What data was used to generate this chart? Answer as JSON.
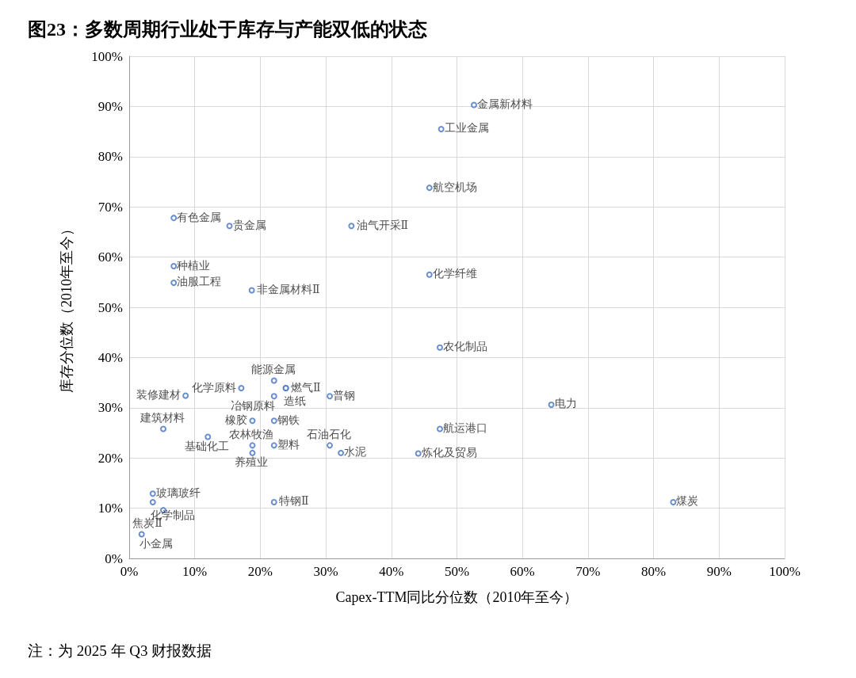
{
  "chart_data": {
    "type": "scatter",
    "title": "图23：多数周期行业处于库存与产能双低的状态",
    "xlabel": "Capex-TTM同比分位数（2010年至今）",
    "ylabel": "库存分位数（2010年至今）",
    "annotations": [
      "注：为 2025 年 Q3 财报数据"
    ],
    "xlim": [
      0,
      100
    ],
    "ylim": [
      0,
      100
    ],
    "xticks": [
      {
        "value": 0,
        "label": "0%"
      },
      {
        "value": 10,
        "label": "10%"
      },
      {
        "value": 20,
        "label": "20%"
      },
      {
        "value": 30,
        "label": "30%"
      },
      {
        "value": 40,
        "label": "40%"
      },
      {
        "value": 50,
        "label": "50%"
      },
      {
        "value": 60,
        "label": "60%"
      },
      {
        "value": 70,
        "label": "70%"
      },
      {
        "value": 80,
        "label": "80%"
      },
      {
        "value": 90,
        "label": "90%"
      },
      {
        "value": 100,
        "label": "100%"
      }
    ],
    "yticks": [
      {
        "value": 0,
        "label": "0%"
      },
      {
        "value": 10,
        "label": "10%"
      },
      {
        "value": 20,
        "label": "20%"
      },
      {
        "value": 30,
        "label": "30%"
      },
      {
        "value": 40,
        "label": "40%"
      },
      {
        "value": 50,
        "label": "50%"
      },
      {
        "value": 60,
        "label": "60%"
      },
      {
        "value": 70,
        "label": "70%"
      },
      {
        "value": 80,
        "label": "80%"
      },
      {
        "value": 90,
        "label": "90%"
      },
      {
        "value": 100,
        "label": "100%"
      }
    ],
    "grid": true,
    "legend": false,
    "marker": "circle",
    "series": [
      {
        "name": "金属新材料",
        "color": "#4472c4",
        "x": [
          52.6
        ],
        "values": [
          90.3
        ]
      },
      {
        "name": "工业金属",
        "color": "#4472c4",
        "x": [
          47.6
        ],
        "values": [
          85.5
        ]
      },
      {
        "name": "航空机场",
        "color": "#4472c4",
        "x": [
          45.8
        ],
        "values": [
          73.8
        ]
      },
      {
        "name": "有色金属",
        "color": "#4472c4",
        "x": [
          6.8
        ],
        "values": [
          67.8
        ]
      },
      {
        "name": "贵金属",
        "color": "#4472c4",
        "x": [
          15.3
        ],
        "values": [
          66.2
        ]
      },
      {
        "name": "油气开采Ⅱ",
        "color": "#4472c4",
        "x": [
          33.9
        ],
        "values": [
          66.2
        ]
      },
      {
        "name": "种植业",
        "color": "#4472c4",
        "x": [
          6.8
        ],
        "values": [
          58.2
        ]
      },
      {
        "name": "油服工程",
        "color": "#4472c4",
        "x": [
          6.8
        ],
        "values": [
          54.9
        ]
      },
      {
        "name": "非金属材料Ⅱ",
        "color": "#4472c4",
        "x": [
          18.7
        ],
        "values": [
          53.4
        ]
      },
      {
        "name": "化学纤维",
        "color": "#4472c4",
        "x": [
          45.8
        ],
        "values": [
          56.5
        ]
      },
      {
        "name": "农化制品",
        "color": "#4472c4",
        "x": [
          47.4
        ],
        "values": [
          42.0
        ]
      },
      {
        "name": "电力",
        "color": "#4472c4",
        "x": [
          64.4
        ],
        "values": [
          30.6
        ]
      },
      {
        "name": "航运港口",
        "color": "#4472c4",
        "x": [
          47.4
        ],
        "values": [
          25.8
        ]
      },
      {
        "name": "炼化及贸易",
        "color": "#4472c4",
        "x": [
          44.1
        ],
        "values": [
          20.9
        ]
      },
      {
        "name": "煤炭",
        "color": "#4472c4",
        "x": [
          83.0
        ],
        "values": [
          11.2
        ]
      },
      {
        "name": "能源金属",
        "color": "#4472c4",
        "x": [
          22.1
        ],
        "values": [
          35.4
        ]
      },
      {
        "name": "化学原料",
        "color": "#4472c4",
        "x": [
          17.1
        ],
        "values": [
          33.9
        ]
      },
      {
        "name": "燃气Ⅱ",
        "color": "#4472c4",
        "x": [
          23.9
        ],
        "values": [
          33.9
        ]
      },
      {
        "name": "造纸",
        "color": "#4472c4",
        "x": [
          23.9
        ],
        "values": [
          33.9
        ]
      },
      {
        "name": "冶钢原料",
        "color": "#4472c4",
        "x": [
          22.1
        ],
        "values": [
          32.3
        ]
      },
      {
        "name": "普钢",
        "color": "#4472c4",
        "x": [
          30.6
        ],
        "values": [
          32.3
        ]
      },
      {
        "name": "装修建材",
        "color": "#4472c4",
        "x": [
          8.6
        ],
        "values": [
          32.4
        ]
      },
      {
        "name": "橡胶",
        "color": "#4472c4",
        "x": [
          18.8
        ],
        "values": [
          27.4
        ]
      },
      {
        "name": "钢铁",
        "color": "#4472c4",
        "x": [
          22.1
        ],
        "values": [
          27.4
        ]
      },
      {
        "name": "建筑材料",
        "color": "#4472c4",
        "x": [
          5.2
        ],
        "values": [
          25.8
        ]
      },
      {
        "name": "基础化工",
        "color": "#4472c4",
        "x": [
          12.0
        ],
        "values": [
          24.2
        ]
      },
      {
        "name": "农林牧渔",
        "color": "#4472c4",
        "x": [
          18.8
        ],
        "values": [
          22.5
        ]
      },
      {
        "name": "养殖业",
        "color": "#4472c4",
        "x": [
          18.8
        ],
        "values": [
          21.0
        ]
      },
      {
        "name": "塑料",
        "color": "#4472c4",
        "x": [
          22.1
        ],
        "values": [
          22.5
        ]
      },
      {
        "name": "石油石化",
        "color": "#4472c4",
        "x": [
          30.6
        ],
        "values": [
          22.5
        ]
      },
      {
        "name": "水泥",
        "color": "#4472c4",
        "x": [
          32.3
        ],
        "values": [
          21.0
        ]
      },
      {
        "name": "玻璃玻纤",
        "color": "#4472c4",
        "x": [
          3.6
        ],
        "values": [
          12.9
        ]
      },
      {
        "name": "化学制品",
        "color": "#4472c4",
        "x": [
          3.6
        ],
        "values": [
          11.2
        ]
      },
      {
        "name": "焦炭Ⅱ",
        "color": "#4472c4",
        "x": [
          5.2
        ],
        "values": [
          9.6
        ]
      },
      {
        "name": "特钢Ⅱ",
        "color": "#4472c4",
        "x": [
          22.1
        ],
        "values": [
          11.2
        ]
      },
      {
        "name": "小金属",
        "color": "#4472c4",
        "x": [
          1.9
        ],
        "values": [
          4.8
        ]
      }
    ]
  }
}
